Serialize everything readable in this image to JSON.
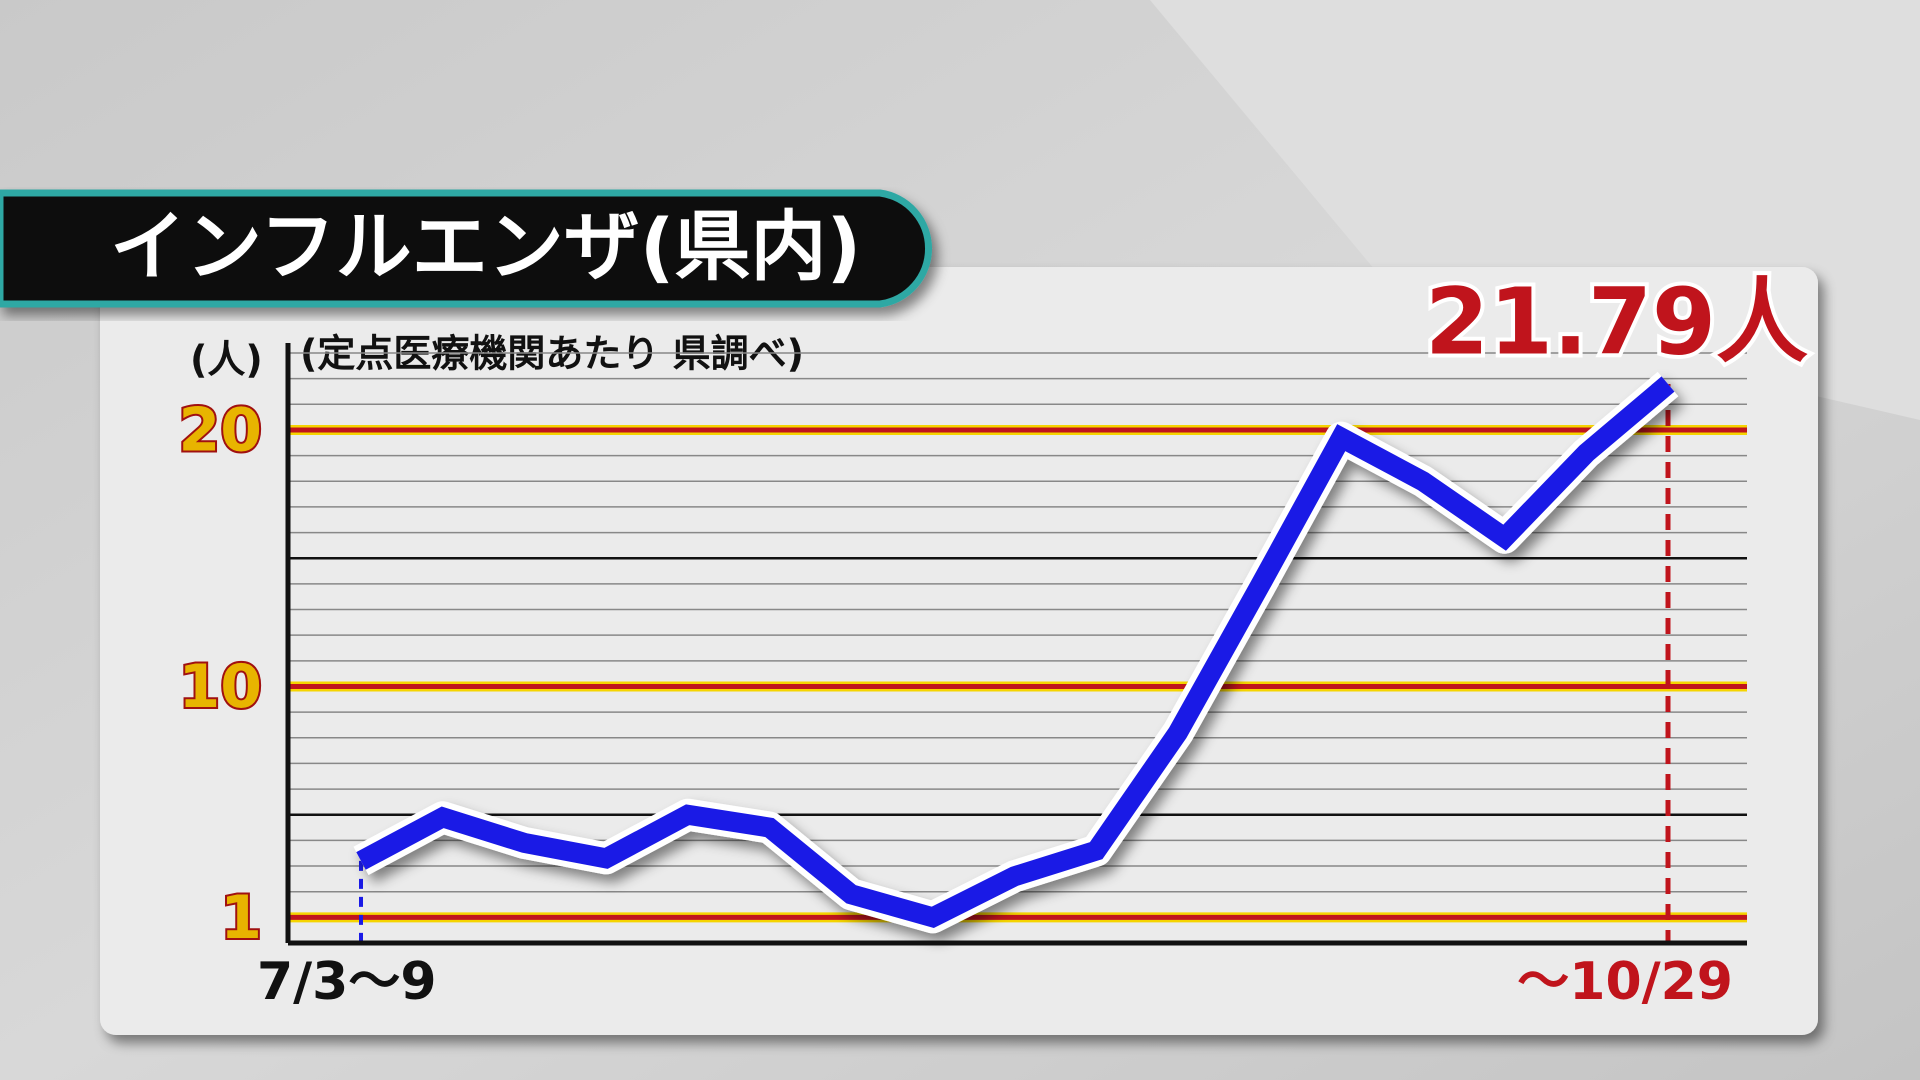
{
  "chart_data": {
    "type": "line",
    "title": "インフルエンザ(県内)",
    "subtitle": "(定点医療機関あたり 県調べ)",
    "y_label": "(人)",
    "categories": [
      "7/3〜9",
      null,
      null,
      null,
      null,
      null,
      null,
      null,
      null,
      null,
      null,
      null,
      null,
      null,
      null,
      null,
      "〜10/29"
    ],
    "values": [
      3.2,
      4.9,
      3.9,
      3.3,
      5.0,
      4.5,
      1.9,
      1.0,
      2.6,
      3.6,
      8.2,
      13.9,
      19.7,
      18.0,
      15.8,
      19.1,
      21.79
    ],
    "value_labels": [
      null,
      null,
      null,
      null,
      null,
      null,
      null,
      null,
      null,
      null,
      null,
      null,
      null,
      null,
      null,
      null,
      "21.79人"
    ],
    "color": "#1a1ae6",
    "highlight_color": "#c0141c",
    "ylim": [
      0,
      23
    ],
    "yticks": [
      1,
      10,
      20
    ],
    "minor_yticks": [
      2,
      3,
      4,
      5,
      6,
      7,
      8,
      9,
      11,
      12,
      13,
      14,
      15,
      16,
      17,
      18,
      19,
      21,
      22,
      23
    ],
    "dark_yticks": [
      5,
      15
    ],
    "grid": true
  }
}
